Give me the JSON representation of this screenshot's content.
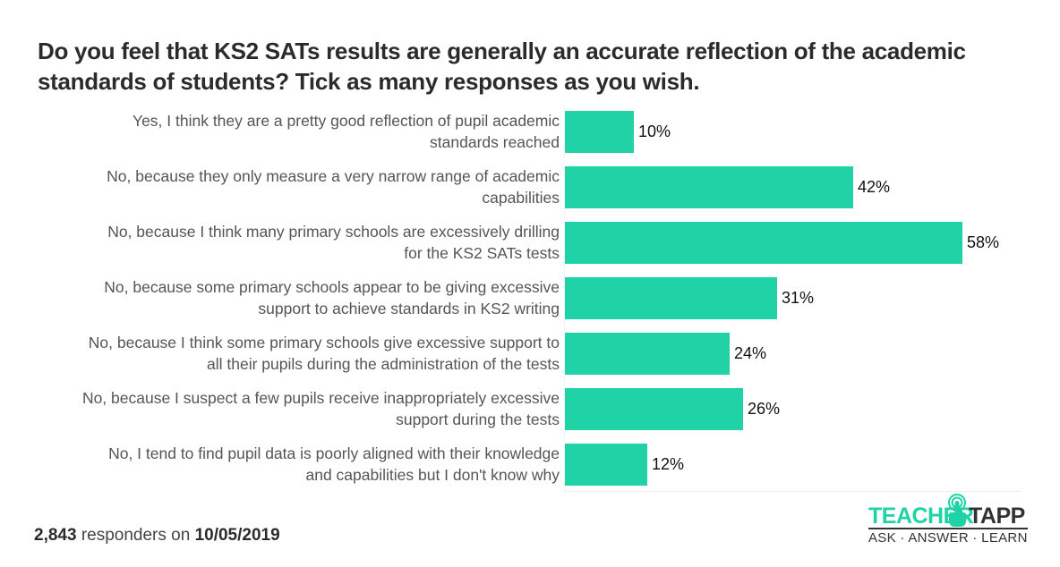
{
  "title": "Do you feel that KS2 SATs results are generally an accurate reflection of the academic standards of students? Tick as many responses as you wish.",
  "chart_data": {
    "type": "bar",
    "orientation": "horizontal",
    "title": "Do you feel that KS2 SATs results are generally an accurate reflection of the academic standards of students? Tick as many responses as you wish.",
    "xlabel": "",
    "ylabel": "",
    "xlim": [
      0,
      58
    ],
    "grid": false,
    "bar_color": "#20d3a6",
    "categories": [
      "Yes, I think they are a pretty good reflection of pupil academic standards reached",
      "No, because they only measure a very narrow range of academic capabilities",
      "No, because I think many primary schools are excessively drilling for the KS2 SATs tests",
      "No, because some primary schools appear to be giving excessive support to achieve standards in KS2 writing",
      "No, because I think some primary schools give excessive support to all their pupils during the administration of the tests",
      "No, because I suspect a few pupils receive inappropriately excessive support during the tests",
      "No, I tend to find pupil data is poorly aligned with their knowledge and capabilities but I don't know why"
    ],
    "category_lines": [
      [
        "Yes, I think they are a pretty good reflection of pupil academic",
        "standards reached"
      ],
      [
        "No, because they only measure a very narrow range of academic",
        "capabilities"
      ],
      [
        "No, because I think many primary schools are excessively drilling",
        "for the KS2 SATs tests"
      ],
      [
        "No, because some primary schools appear to be giving excessive",
        "support to achieve standards in KS2 writing"
      ],
      [
        "No, because I think some primary schools give excessive support to",
        "all their pupils during the administration of the tests"
      ],
      [
        "No, because I suspect a few pupils receive inappropriately excessive",
        "support during the tests"
      ],
      [
        "No, I tend to find pupil data is poorly aligned with their knowledge",
        "and capabilities but I don't know why"
      ]
    ],
    "values": [
      10,
      42,
      58,
      31,
      24,
      26,
      12
    ],
    "value_labels": [
      "10%",
      "42%",
      "58%",
      "31%",
      "24%",
      "26%",
      "12%"
    ],
    "unit": "%"
  },
  "footer": {
    "count": "2,843",
    "middle": " responders on ",
    "date": "10/05/2019"
  },
  "logo": {
    "word1": "TEACHER",
    "word2": "TAPP",
    "tagline": "ASK · ANSWER · LEARN",
    "brand_color": "#20d3a6",
    "dark_color": "#333333"
  }
}
